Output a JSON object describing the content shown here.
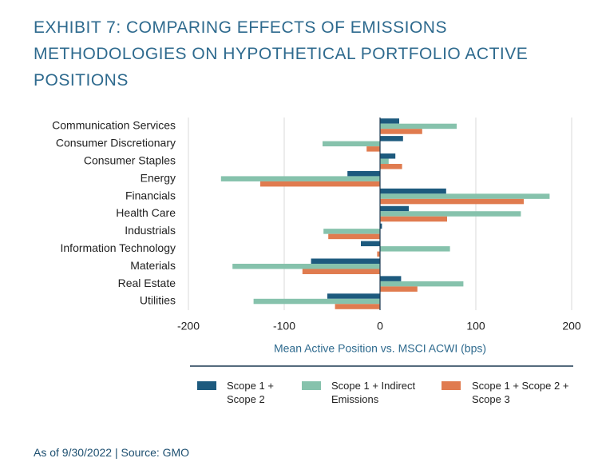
{
  "chart_data": {
    "type": "hbar",
    "title": "EXHIBIT 7: COMPARING EFFECTS OF EMISSIONS METHODOLOGIES ON HYPOTHETICAL PORTFOLIO ACTIVE POSITIONS",
    "x_label": "Mean Active Position vs. MSCI ACWI (bps)",
    "source": "As of 9/30/2022 | Source: GMO",
    "categories": [
      "Communication Services",
      "Consumer Discretionary",
      "Consumer Staples",
      "Energy",
      "Financials",
      "Health Care",
      "Industrials",
      "Information Technology",
      "Materials",
      "Real Estate",
      "Utilities"
    ],
    "series": [
      {
        "name": "Scope 1 + Scope 2",
        "color": "#1d5a7e",
        "values": [
          20,
          24,
          16,
          -34,
          69,
          30,
          2,
          -20,
          -72,
          22,
          -55
        ]
      },
      {
        "name": "Scope 1 + Indirect Emissions",
        "color": "#86c2ac",
        "values": [
          80,
          -60,
          9,
          -166,
          177,
          147,
          -59,
          73,
          -154,
          87,
          -132
        ]
      },
      {
        "name": "Scope 1 + Scope 2 + Scope 3",
        "color": "#e07b4f",
        "values": [
          44,
          -14,
          23,
          -125,
          150,
          70,
          -54,
          -3,
          -81,
          39,
          -47
        ]
      }
    ],
    "xlim": [
      -200,
      200
    ],
    "xticks": [
      -200,
      -100,
      0,
      100,
      200
    ],
    "grid": true
  }
}
